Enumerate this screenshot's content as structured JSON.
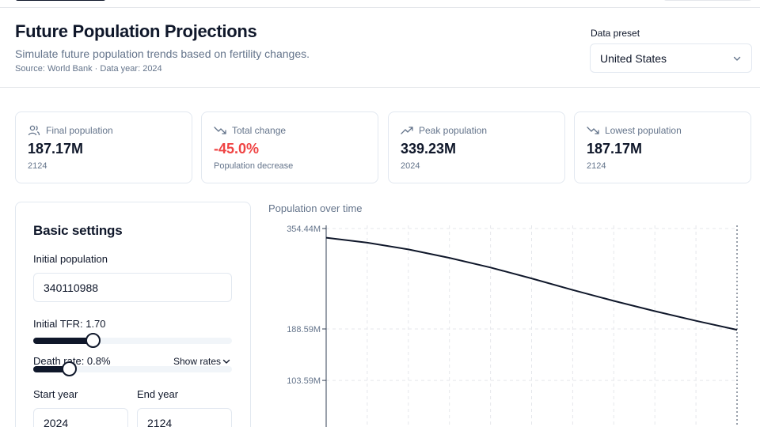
{
  "header": {
    "title": "Future Population Projections",
    "subtitle": "Simulate future population trends based on fertility changes.",
    "source": "Source: World Bank · Data year: 2024",
    "preset_label": "Data preset",
    "preset_value": "United States"
  },
  "cards": [
    {
      "icon": "users-icon",
      "label": "Final population",
      "value": "187.17M",
      "sub": "2124"
    },
    {
      "icon": "trend-down-icon",
      "label": "Total change",
      "value": "-45.0%",
      "sub": "Population decrease",
      "value_color": "#ef4444"
    },
    {
      "icon": "trend-up-icon",
      "label": "Peak population",
      "value": "339.23M",
      "sub": "2024"
    },
    {
      "icon": "trend-down-icon",
      "label": "Lowest population",
      "value": "187.17M",
      "sub": "2124"
    }
  ],
  "settings": {
    "heading": "Basic settings",
    "initial_population_label": "Initial population",
    "initial_population_value": "340110988",
    "tfr_label": "Initial TFR: 1.70",
    "tfr_fraction": 0.3,
    "death_label": "Death rate: 0.8%",
    "death_fraction": 0.18,
    "show_rates": "Show rates",
    "start_year_label": "Start year",
    "start_year_value": "2024",
    "end_year_label": "End year",
    "end_year_value": "2124"
  },
  "chart": {
    "title": "Population over time"
  },
  "chart_data": {
    "type": "line",
    "title": "Population over time",
    "xlabel": "",
    "ylabel": "",
    "y_ticks": [
      354440000,
      188590000,
      103590000
    ],
    "y_tick_labels": [
      "354.44M",
      "188.59M",
      "103.59M"
    ],
    "x_range": [
      2024,
      2124
    ],
    "grid": true,
    "series": [
      {
        "x": [
          2024,
          2034,
          2044,
          2054,
          2064,
          2074,
          2084,
          2094,
          2104,
          2114,
          2124
        ],
        "values": [
          339230000,
          331000000,
          320000000,
          306000000,
          290000000,
          272000000,
          253000000,
          235000000,
          218000000,
          202000000,
          187170000
        ],
        "color": "#0f172a"
      }
    ]
  },
  "colors": {
    "accent": "#0f172a",
    "negative": "#ef4444",
    "muted_text": "#64748b",
    "border": "#e2e8f0"
  }
}
